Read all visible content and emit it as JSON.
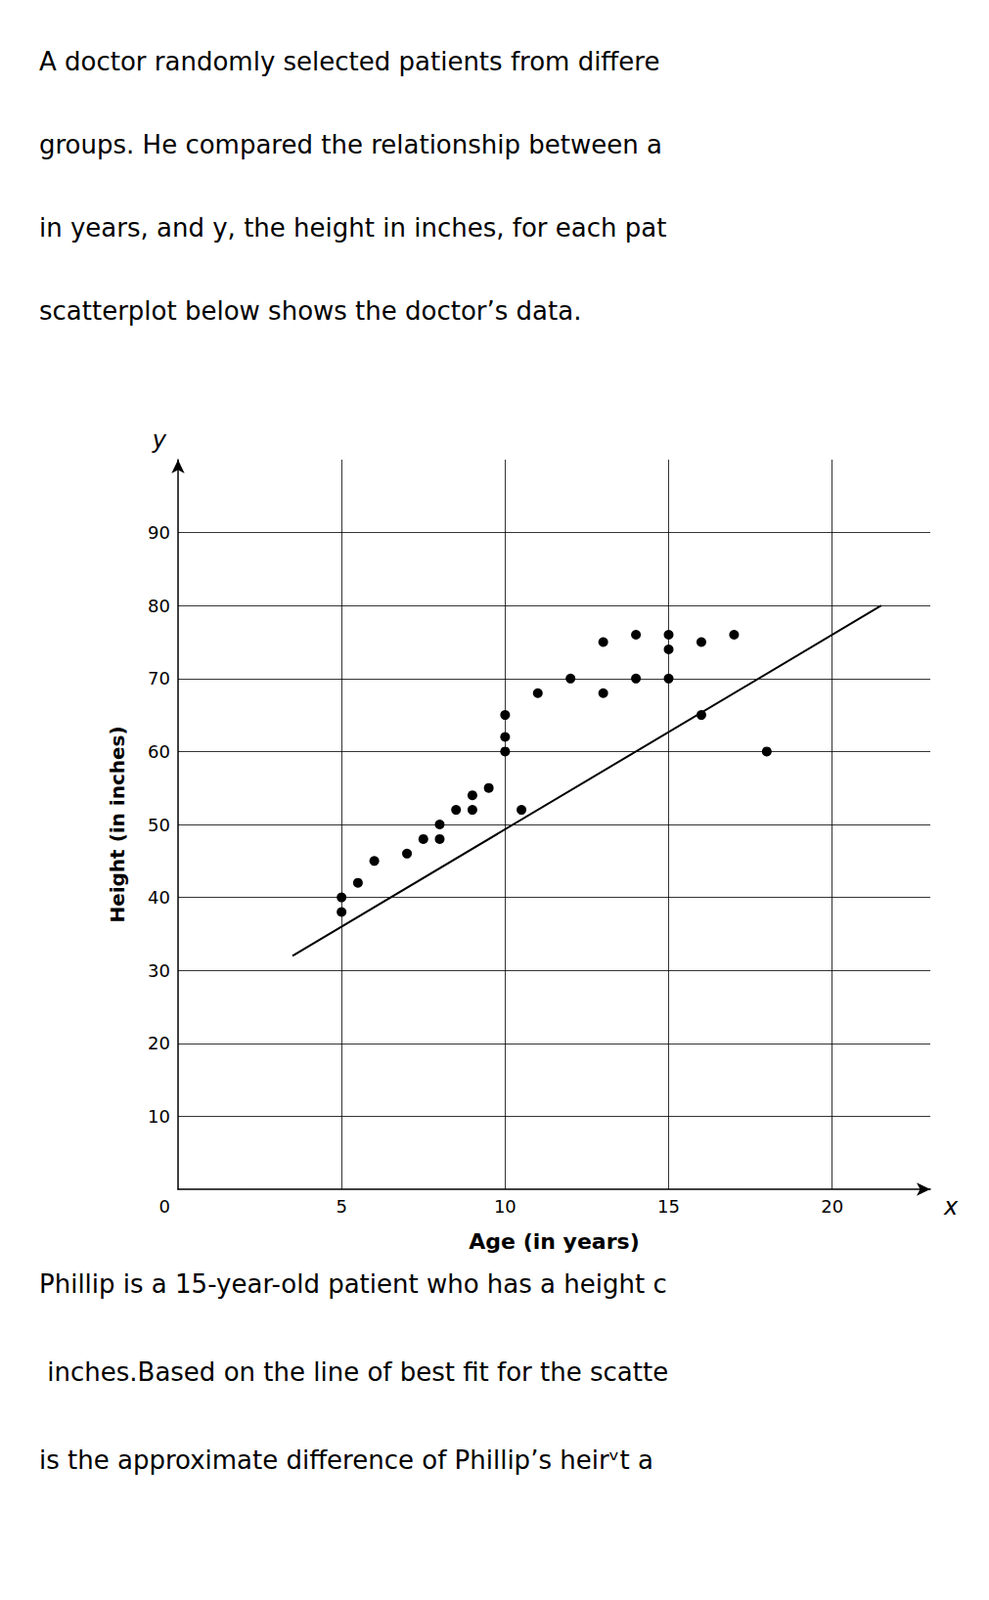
{
  "chart_data": {
    "type": "scatter",
    "annotations": {
      "text_above": [
        "A doctor randomly selected patients from differe",
        "groups. He compared the relationship between a",
        "in years, and y, the height in inches, for each pat",
        "scatterplot below shows the doctor’s data."
      ],
      "text_below": [
        "Phillip is a 15-year-old patient who has a height c",
        " inches.Based on the line of best fit for the scatte",
        "is the approximate difference of Phillip’s heirᵛt a"
      ],
      "origin_label": "0",
      "x_symbol": "x",
      "y_symbol": "y"
    },
    "xlabel": "Age (in years)",
    "ylabel": "Height (in inches)",
    "series": [
      {
        "type": "scatter",
        "color": "#000000",
        "marker": "circle",
        "x": [
          5,
          5,
          5.5,
          6,
          7,
          7.5,
          8,
          8,
          8.5,
          9,
          9,
          9.5,
          10,
          10,
          10,
          10.5,
          11,
          12,
          13,
          13,
          14,
          14,
          15,
          15,
          15,
          16,
          16,
          17,
          18
        ],
        "values": [
          38,
          40,
          42,
          45,
          46,
          48,
          48,
          50,
          52,
          52,
          54,
          55,
          60,
          62,
          65,
          52,
          68,
          70,
          68,
          75,
          70,
          76,
          70,
          74,
          76,
          65,
          75,
          76,
          60
        ]
      },
      {
        "type": "line",
        "color": "#000000",
        "line_style": "solid",
        "x": [
          3.5,
          21.5
        ],
        "values": [
          32,
          80
        ]
      }
    ],
    "xlim": [
      0,
      23
    ],
    "ylim": [
      0,
      100
    ],
    "xticks": [
      5,
      10,
      15,
      20
    ],
    "yticks": [
      10,
      20,
      30,
      40,
      50,
      60,
      70,
      80,
      90
    ],
    "grid": true
  }
}
